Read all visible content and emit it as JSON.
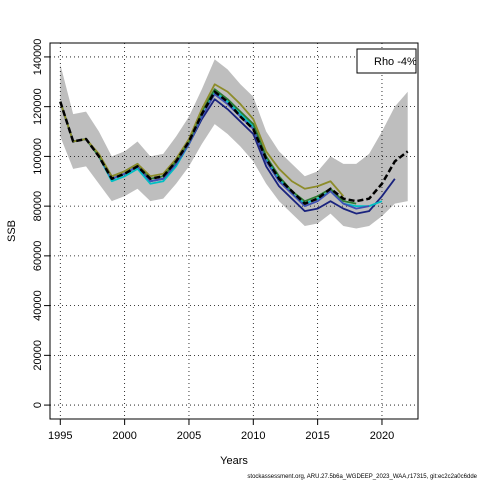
{
  "chart_data": {
    "type": "line",
    "xlabel": "Years",
    "ylabel": "SSB",
    "xlim": [
      1994.2,
      2022.8
    ],
    "ylim": [
      -5600,
      145600
    ],
    "x_ticks": [
      1995,
      2000,
      2005,
      2010,
      2015,
      2020
    ],
    "y_ticks": [
      0,
      20000,
      40000,
      60000,
      80000,
      100000,
      120000,
      140000
    ],
    "x_tick_labels": [
      "1995",
      "2000",
      "2005",
      "2010",
      "2015",
      "2020"
    ],
    "y_tick_labels": [
      "0",
      "20000",
      "40000",
      "60000",
      "80000",
      "100000",
      "120000",
      "140000"
    ],
    "grid": true,
    "legend_text": "Rho -4%",
    "legend_position": "top-right",
    "footer": "stockassessment.org, ARU.27.5b6a_WGDEEP_2023_WAA,r17315, git:ec2c2a0c6dde",
    "band": {
      "x": [
        1995,
        1996,
        1997,
        1998,
        1999,
        2000,
        2001,
        2002,
        2003,
        2004,
        2005,
        2006,
        2007,
        2008,
        2009,
        2010,
        2011,
        2012,
        2013,
        2014,
        2015,
        2016,
        2017,
        2018,
        2019,
        2020,
        2021,
        2022
      ],
      "upper": [
        137000,
        117000,
        118000,
        110000,
        100000,
        102000,
        106000,
        100000,
        101000,
        108000,
        116000,
        127000,
        139000,
        135000,
        129000,
        124000,
        110000,
        102000,
        97000,
        92000,
        94000,
        100000,
        97000,
        97000,
        101000,
        110000,
        120000,
        126000
      ],
      "lower": [
        108000,
        95000,
        96000,
        89000,
        82000,
        84000,
        87000,
        82000,
        83000,
        89000,
        96000,
        105000,
        113000,
        109000,
        104000,
        98000,
        89000,
        82000,
        77000,
        72000,
        73000,
        77000,
        72000,
        71000,
        72000,
        76000,
        81000,
        82000
      ]
    },
    "series": [
      {
        "color": "#000000",
        "style": "dashed",
        "x": [
          1995,
          1996,
          1997,
          1998,
          1999,
          2000,
          2001,
          2002,
          2003,
          2004,
          2005,
          2006,
          2007,
          2008,
          2009,
          2010,
          2011,
          2012,
          2013,
          2014,
          2015,
          2016,
          2017,
          2018,
          2019,
          2020,
          2021,
          2022
        ],
        "values": [
          122000,
          106000,
          107000,
          100000,
          91000,
          93000,
          96000,
          91000,
          92000,
          98000,
          106000,
          117000,
          126000,
          122000,
          116000,
          111000,
          99000,
          91000,
          86000,
          81000,
          83000,
          87000,
          83000,
          82000,
          83000,
          89000,
          98000,
          102000
        ]
      },
      {
        "color": "#1a237e",
        "style": "solid",
        "x": [
          1995,
          1996,
          1997,
          1998,
          1999,
          2000,
          2001,
          2002,
          2003,
          2004,
          2005,
          2006,
          2007,
          2008,
          2009,
          2010,
          2011,
          2012,
          2013,
          2014,
          2015,
          2016,
          2017,
          2018,
          2019,
          2020,
          2021
        ],
        "values": [
          122000,
          106000,
          107000,
          100000,
          91000,
          93000,
          96000,
          90000,
          91000,
          97000,
          105000,
          115000,
          123000,
          119000,
          114000,
          109000,
          96000,
          88000,
          83000,
          78000,
          79000,
          82000,
          79000,
          77000,
          78000,
          84000,
          91000
        ]
      },
      {
        "color": "#00bfc4",
        "style": "solid",
        "x": [
          1995,
          1996,
          1997,
          1998,
          1999,
          2000,
          2001,
          2002,
          2003,
          2004,
          2005,
          2006,
          2007,
          2008,
          2009,
          2010,
          2011,
          2012,
          2013,
          2014,
          2015,
          2016,
          2017,
          2018,
          2019,
          2020
        ],
        "values": [
          122000,
          106000,
          107000,
          100000,
          90000,
          92000,
          95000,
          89000,
          90000,
          96000,
          105000,
          116000,
          126000,
          122000,
          117000,
          112000,
          99000,
          91000,
          85000,
          81000,
          83000,
          86000,
          81000,
          80000,
          80000,
          82000
        ]
      },
      {
        "color": "#3f51b5",
        "style": "solid",
        "x": [
          1995,
          1996,
          1997,
          1998,
          1999,
          2000,
          2001,
          2002,
          2003,
          2004,
          2005,
          2006,
          2007,
          2008,
          2009,
          2010,
          2011,
          2012,
          2013,
          2014,
          2015,
          2016,
          2017,
          2018,
          2019
        ],
        "values": [
          122000,
          106000,
          107000,
          100000,
          91000,
          93000,
          96000,
          90000,
          91000,
          97000,
          105000,
          116000,
          125000,
          121000,
          116000,
          111000,
          98000,
          90000,
          85000,
          80000,
          82000,
          86000,
          81000,
          79000,
          80000
        ]
      },
      {
        "color": "#2e7d32",
        "style": "solid",
        "x": [
          1995,
          1996,
          1997,
          1998,
          1999,
          2000,
          2001,
          2002,
          2003,
          2004,
          2005,
          2006,
          2007,
          2008,
          2009,
          2010,
          2011,
          2012,
          2013,
          2014,
          2015,
          2016,
          2017,
          2018
        ],
        "values": [
          122000,
          106000,
          107000,
          100000,
          92000,
          94000,
          97000,
          91000,
          92000,
          98000,
          106000,
          118000,
          127000,
          123000,
          118000,
          113000,
          100000,
          92000,
          86000,
          82000,
          84000,
          87000,
          82000,
          81000
        ]
      },
      {
        "color": "#8d8c2a",
        "style": "solid",
        "x": [
          1995,
          1996,
          1997,
          1998,
          1999,
          2000,
          2001,
          2002,
          2003,
          2004,
          2005,
          2006,
          2007,
          2008,
          2009,
          2010,
          2011,
          2012,
          2013,
          2014,
          2015,
          2016,
          2017
        ],
        "values": [
          122000,
          106000,
          107000,
          101000,
          92000,
          94000,
          97000,
          92000,
          93000,
          99000,
          107000,
          119000,
          129000,
          126000,
          121000,
          115000,
          102000,
          95000,
          90000,
          87000,
          88000,
          90000,
          84000
        ]
      }
    ]
  }
}
